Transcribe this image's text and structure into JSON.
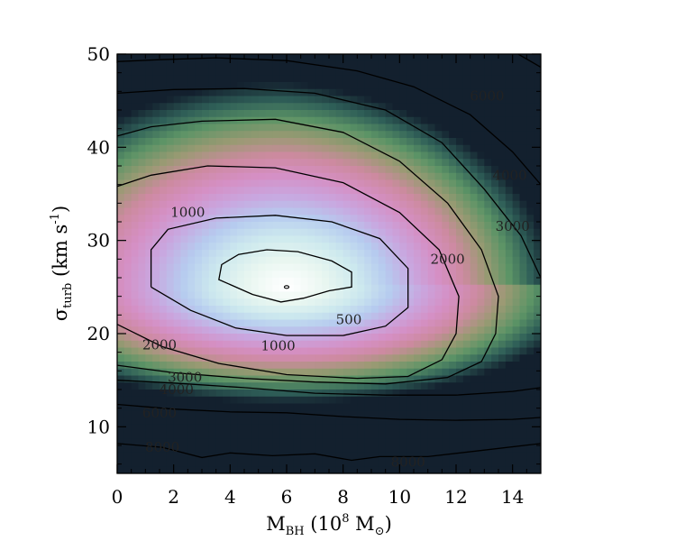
{
  "chart_data": {
    "type": "heatmap",
    "title": "",
    "xlabel": {
      "base": "M",
      "sub": "BH",
      "rest_pre": " (10",
      "sup": "8",
      "rest_mid": " M",
      "sub2": "⊙",
      "rest_post": ")"
    },
    "ylabel": {
      "base": "σ",
      "sub": "turb",
      "rest_pre": " (km s",
      "sup": "-1",
      "rest_post": ")"
    },
    "xlim": [
      0,
      15
    ],
    "ylim": [
      5,
      50
    ],
    "x_ticks": [
      0,
      2,
      4,
      6,
      8,
      10,
      12,
      14
    ],
    "y_ticks": [
      10,
      20,
      30,
      40,
      50
    ],
    "x_tick_labels": [
      "0",
      "2",
      "4",
      "6",
      "8",
      "10",
      "12",
      "14"
    ],
    "y_tick_labels": [
      "10",
      "20",
      "30",
      "40",
      "50"
    ],
    "colormap_stops": [
      "#ffffff",
      "#e8f6f0",
      "#cde9ee",
      "#b6cbef",
      "#c9a6df",
      "#d58fc4",
      "#cd8aa0",
      "#9a9a73",
      "#5c9466",
      "#2f5f58",
      "#13202e"
    ],
    "levels": [
      {
        "value": 500,
        "label": "500",
        "lines": [
          [
            [
              4.8,
              24.2
            ],
            [
              5.8,
              23.4
            ],
            [
              6.6,
              23.8
            ],
            [
              7.5,
              24.6
            ],
            [
              8.3,
              25.0
            ],
            [
              8.3,
              26.6
            ],
            [
              7.6,
              27.8
            ],
            [
              6.4,
              28.8
            ],
            [
              5.3,
              29.0
            ],
            [
              4.3,
              28.5
            ],
            [
              3.7,
              27.4
            ],
            [
              3.6,
              25.8
            ],
            [
              4.8,
              24.2
            ]
          ]
        ]
      },
      {
        "value": 1000,
        "label": "1000",
        "lines": [
          [
            [
              1.2,
              25.0
            ],
            [
              2.6,
              22.5
            ],
            [
              4.2,
              20.6
            ],
            [
              6.0,
              19.8
            ],
            [
              8.0,
              19.8
            ],
            [
              9.5,
              20.8
            ],
            [
              10.3,
              22.8
            ],
            [
              10.3,
              27.0
            ],
            [
              9.3,
              30.2
            ],
            [
              7.6,
              32.0
            ],
            [
              5.6,
              32.7
            ],
            [
              3.5,
              32.4
            ],
            [
              1.8,
              31.2
            ],
            [
              1.2,
              29.0
            ],
            [
              1.2,
              25.0
            ]
          ]
        ]
      },
      {
        "value": 2000,
        "label": "2000",
        "lines": [
          [
            [
              0,
              21.0
            ],
            [
              1.6,
              18.6
            ],
            [
              3.6,
              16.8
            ],
            [
              6.0,
              15.6
            ],
            [
              8.5,
              15.2
            ],
            [
              10.3,
              15.4
            ],
            [
              11.5,
              17.2
            ],
            [
              12.0,
              20.0
            ],
            [
              12.1,
              24.0
            ],
            [
              11.4,
              29.0
            ],
            [
              10.0,
              33.0
            ],
            [
              8.0,
              36.2
            ],
            [
              5.6,
              37.8
            ],
            [
              3.2,
              38.0
            ],
            [
              1.2,
              37.0
            ],
            [
              0,
              35.8
            ]
          ]
        ]
      },
      {
        "value": 3000,
        "label": "3000",
        "lines": [
          [
            [
              0,
              16.6
            ],
            [
              2.0,
              15.8
            ],
            [
              4.5,
              15.2
            ],
            [
              7.0,
              14.8
            ],
            [
              9.5,
              14.6
            ],
            [
              11.7,
              15.3
            ],
            [
              12.9,
              17.0
            ],
            [
              13.4,
              20.0
            ],
            [
              13.5,
              24.0
            ],
            [
              12.9,
              29.0
            ],
            [
              11.7,
              34.0
            ],
            [
              10.0,
              38.5
            ],
            [
              8.0,
              41.6
            ],
            [
              5.6,
              43.0
            ],
            [
              3.0,
              42.8
            ],
            [
              1.2,
              42.2
            ],
            [
              0,
              41.2
            ]
          ]
        ]
      },
      {
        "value": 4000,
        "label": "4000",
        "lines": [
          [
            [
              0,
              15.0
            ],
            [
              2.0,
              14.7
            ],
            [
              4.5,
              14.2
            ],
            [
              7.0,
              13.6
            ],
            [
              9.5,
              13.4
            ],
            [
              12.0,
              13.4
            ],
            [
              14.0,
              13.8
            ],
            [
              15.0,
              14.2
            ]
          ],
          [
            [
              15.0,
              26.0
            ],
            [
              14.3,
              30.5
            ],
            [
              13.0,
              35.5
            ],
            [
              11.5,
              40.5
            ],
            [
              9.5,
              44.0
            ],
            [
              7.0,
              45.8
            ],
            [
              4.5,
              46.3
            ],
            [
              2.0,
              46.2
            ],
            [
              0,
              45.8
            ]
          ]
        ]
      },
      {
        "value": 6000,
        "label": "6000",
        "lines": [
          [
            [
              0,
              12.4
            ],
            [
              2.0,
              11.9
            ],
            [
              4.0,
              11.6
            ],
            [
              6.0,
              11.5
            ],
            [
              8.0,
              11.1
            ],
            [
              10.0,
              10.8
            ],
            [
              12.0,
              10.7
            ],
            [
              14.0,
              10.8
            ],
            [
              15.0,
              11.0
            ]
          ],
          [
            [
              15.0,
              36.0
            ],
            [
              14.0,
              39.5
            ],
            [
              12.5,
              43.5
            ],
            [
              10.5,
              46.5
            ],
            [
              8.5,
              48.2
            ],
            [
              6.0,
              49.3
            ],
            [
              3.5,
              49.6
            ],
            [
              1.5,
              49.4
            ],
            [
              0,
              49.2
            ]
          ]
        ]
      },
      {
        "value": 8000,
        "label": "8000",
        "lines": [
          [
            [
              0,
              8.2
            ],
            [
              1.6,
              7.8
            ],
            [
              3.0,
              6.7
            ],
            [
              4.0,
              7.2
            ],
            [
              5.5,
              6.9
            ],
            [
              7.0,
              7.1
            ],
            [
              8.3,
              6.4
            ],
            [
              9.3,
              6.8
            ],
            [
              11.0,
              6.8
            ],
            [
              13.0,
              7.5
            ],
            [
              15.0,
              8.2
            ]
          ],
          [
            [
              14.2,
              50.0
            ],
            [
              15.0,
              48.6
            ]
          ]
        ]
      }
    ],
    "contour_labels": [
      {
        "text": "6000",
        "x": 13.1,
        "y": 45.5
      },
      {
        "text": "4000",
        "x": 13.9,
        "y": 37.0
      },
      {
        "text": "3000",
        "x": 14.0,
        "y": 31.5
      },
      {
        "text": "2000",
        "x": 11.7,
        "y": 28.0
      },
      {
        "text": "1000",
        "x": 2.5,
        "y": 33.0
      },
      {
        "text": "500",
        "x": 8.2,
        "y": 21.5
      },
      {
        "text": "1000",
        "x": 5.7,
        "y": 18.7
      },
      {
        "text": "2000",
        "x": 1.5,
        "y": 18.8
      },
      {
        "text": "3000",
        "x": 2.4,
        "y": 15.3
      },
      {
        "text": "4000",
        "x": 2.1,
        "y": 14.0
      },
      {
        "text": "6000",
        "x": 1.5,
        "y": 11.5
      },
      {
        "text": "8000",
        "x": 1.6,
        "y": 7.8
      },
      {
        "text": "8000",
        "x": 10.3,
        "y": 6.2
      }
    ]
  }
}
